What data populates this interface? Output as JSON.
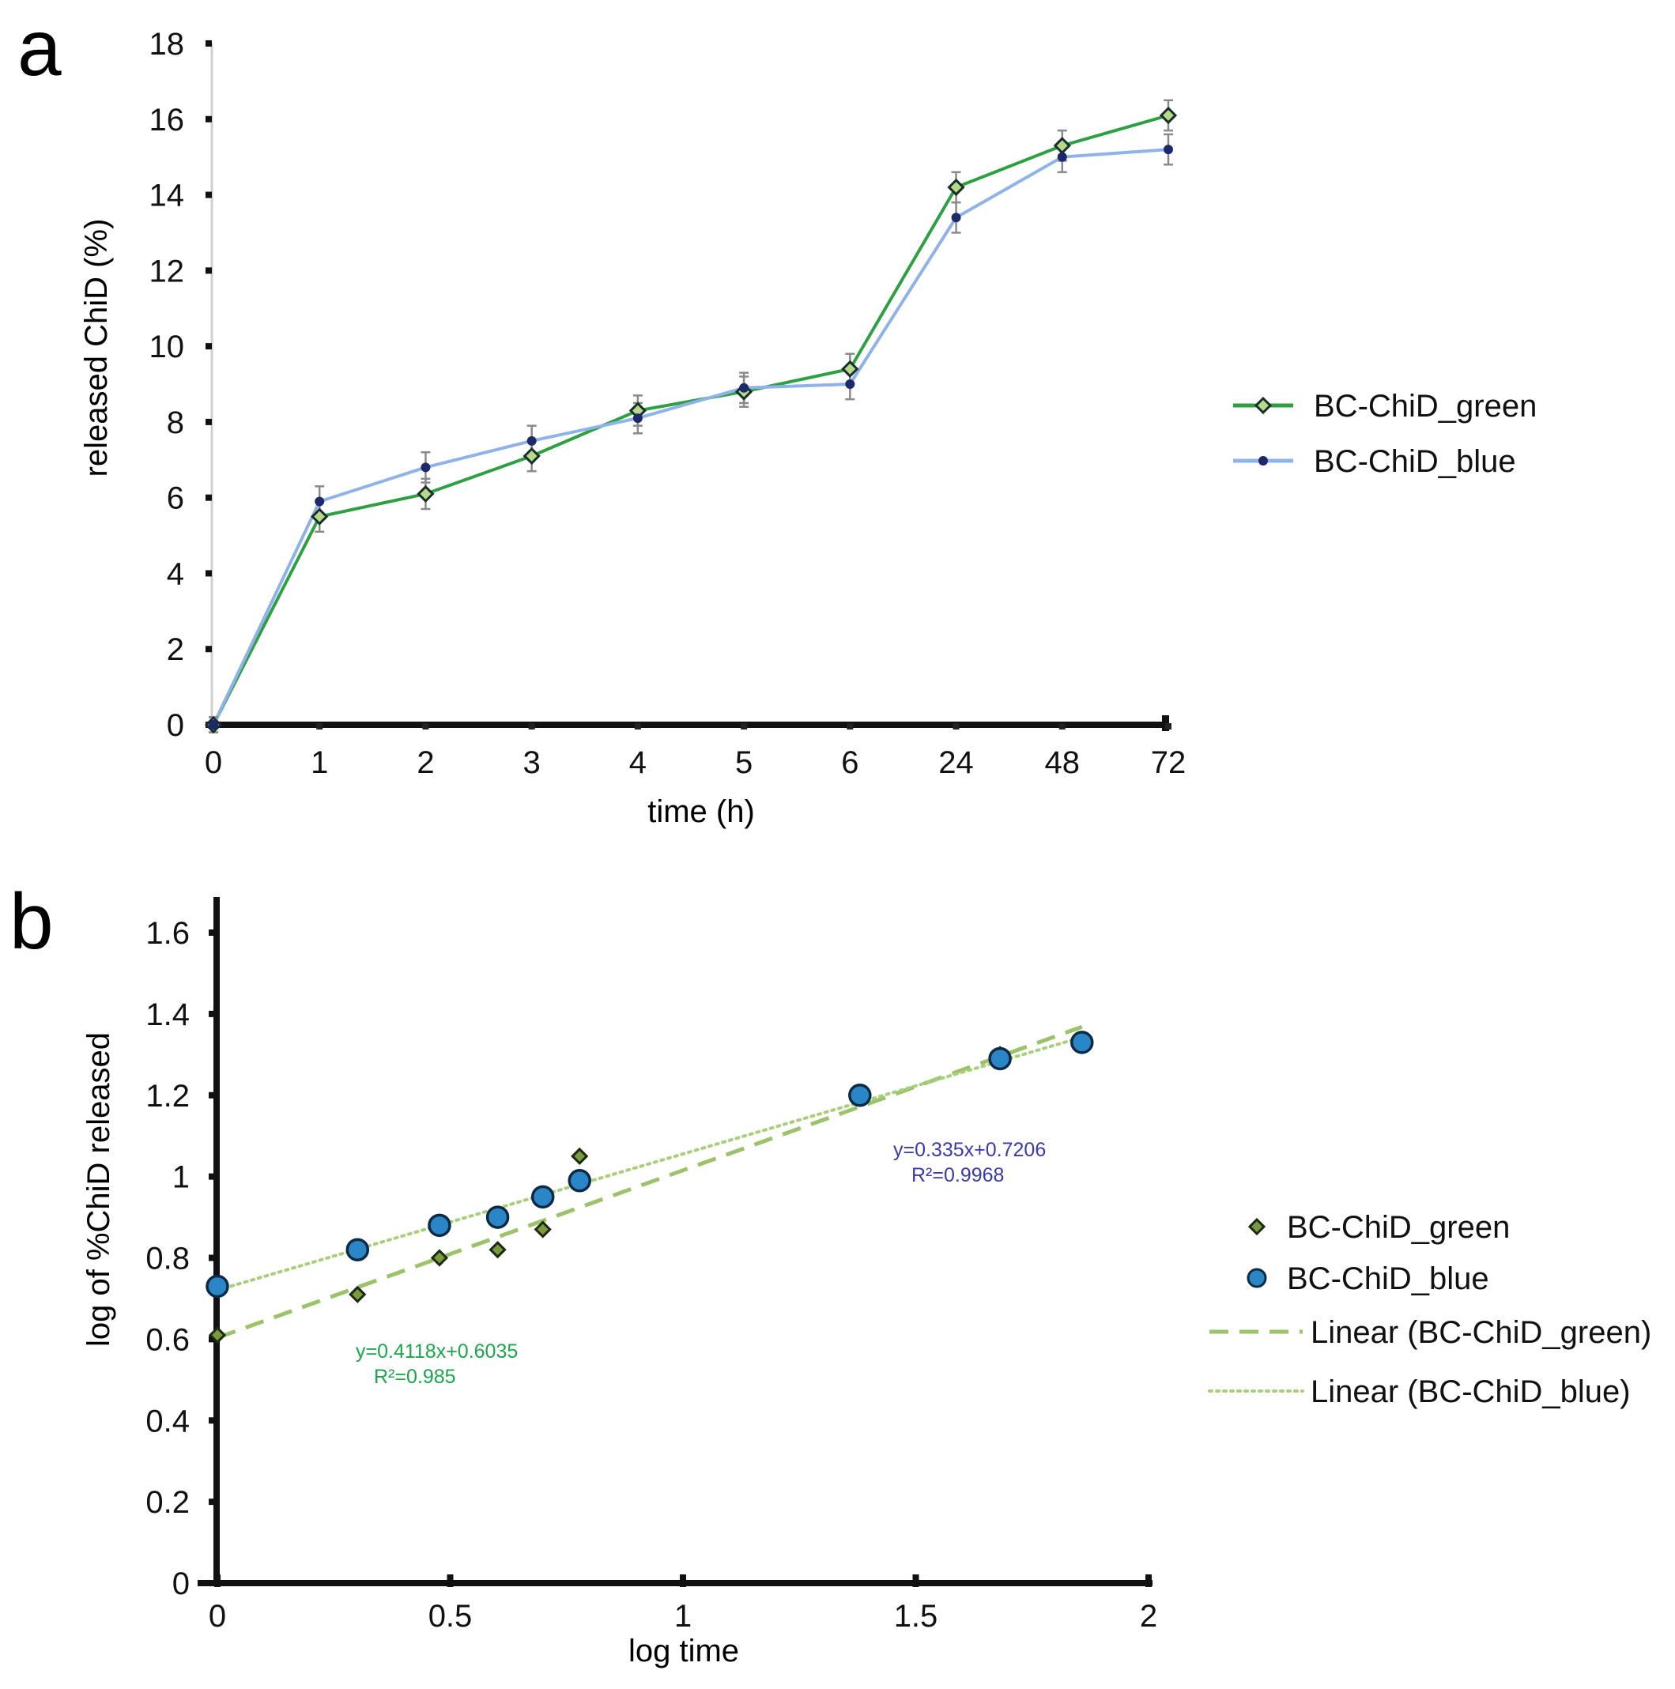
{
  "chart_data": [
    {
      "panel_label": "a",
      "type": "line",
      "xlabel": "time (h)",
      "ylabel": "released ChiD (%)",
      "categories": [
        "0",
        "1",
        "2",
        "3",
        "4",
        "5",
        "6",
        "24",
        "48",
        "72"
      ],
      "ylim": [
        0,
        18
      ],
      "yticks": [
        "0",
        "2",
        "4",
        "6",
        "8",
        "10",
        "12",
        "14",
        "16",
        "18"
      ],
      "grid": false,
      "legend_position": "right",
      "series": [
        {
          "name": "BC-ChiD_green",
          "color": "#2ea043",
          "marker": "diamond",
          "values": [
            0,
            5.5,
            6.1,
            7.1,
            8.3,
            8.8,
            9.4,
            14.2,
            15.3,
            16.1
          ],
          "errors": [
            0.2,
            0.4,
            0.4,
            0.4,
            0.4,
            0.4,
            0.4,
            0.4,
            0.4,
            0.4
          ]
        },
        {
          "name": "BC-ChiD_blue",
          "color": "#8fb3e8",
          "marker": "circle",
          "values": [
            0,
            5.9,
            6.8,
            7.5,
            8.1,
            8.9,
            9.0,
            13.4,
            15.0,
            15.2
          ],
          "errors": [
            0.2,
            0.4,
            0.4,
            0.4,
            0.4,
            0.4,
            0.4,
            0.4,
            0.4,
            0.4
          ]
        }
      ]
    },
    {
      "panel_label": "b",
      "type": "scatter",
      "xlabel": "log time",
      "ylabel": "log of %ChiD released",
      "xlim": [
        0,
        2
      ],
      "ylim": [
        0,
        1.6
      ],
      "xticks": [
        "0",
        "0.5",
        "1",
        "1.5",
        "2"
      ],
      "yticks": [
        "0",
        "0.2",
        "0.4",
        "0.6",
        "0.8",
        "1",
        "1.2",
        "1.4",
        "1.6"
      ],
      "grid": false,
      "legend_position": "right",
      "series": [
        {
          "name": "BC-ChiD_green",
          "color": "#6b8f3a",
          "marker": "diamond",
          "x": [
            0,
            0.301,
            0.477,
            0.602,
            0.699,
            0.778,
            1.38,
            1.681,
            1.857
          ],
          "y": [
            0.61,
            0.71,
            0.8,
            0.82,
            0.87,
            1.05,
            1.2,
            1.3,
            1.33
          ]
        },
        {
          "name": "BC-ChiD_blue",
          "color": "#2a86c7",
          "marker": "circle",
          "x": [
            0,
            0.301,
            0.477,
            0.602,
            0.699,
            0.778,
            1.38,
            1.681,
            1.857
          ],
          "y": [
            0.73,
            0.82,
            0.88,
            0.9,
            0.95,
            0.99,
            1.2,
            1.29,
            1.33
          ]
        }
      ],
      "trendlines": [
        {
          "name": "Linear (BC-ChiD_green)",
          "style": "dashed",
          "color": "#9dc36a",
          "slope": 0.4118,
          "intercept": 0.6035,
          "x_range": [
            0,
            1.857
          ],
          "equation": "y=0.4118x+0.6035",
          "r2": "R²=0.985",
          "label_color": "#1aa64a"
        },
        {
          "name": "Linear (BC-ChiD_blue)",
          "style": "dotted",
          "color": "#a8cf7a",
          "slope": 0.335,
          "intercept": 0.7206,
          "x_range": [
            0,
            1.857
          ],
          "equation": "y=0.335x+0.7206",
          "r2": "R²=0.9968",
          "label_color": "#3a3ab0"
        }
      ]
    }
  ]
}
